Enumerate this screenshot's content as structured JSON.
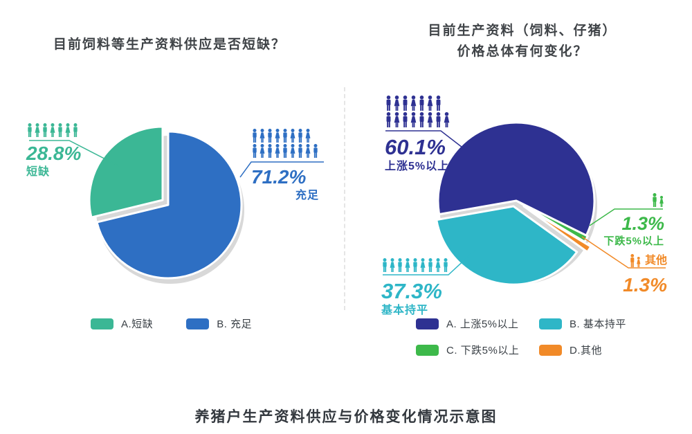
{
  "figure_title": "养猪户生产资料供应与价格变化情况示意图",
  "left_chart": {
    "title": "目前饲料等生产资料供应是否短缺？",
    "callouts": {
      "shortage": {
        "pct": "28.8%",
        "label": "短缺",
        "people_rows": [
          7
        ],
        "color": "#3BB795"
      },
      "sufficient": {
        "pct": "71.2%",
        "label": "充足",
        "people_rows": [
          8,
          9
        ],
        "color": "#2E6FC3"
      }
    },
    "legend": [
      {
        "label": "A.短缺",
        "color": "#3BB795"
      },
      {
        "label": "B. 充足",
        "color": "#2E6FC3"
      }
    ]
  },
  "right_chart": {
    "title_line1": "目前生产资料（饲料、仔猪）",
    "title_line2": "价格总体有何变化？",
    "callouts": {
      "up": {
        "pct": "60.1%",
        "label": "上涨5%以上",
        "people_rows": [
          7,
          8
        ],
        "color": "#2E3192"
      },
      "flat": {
        "pct": "37.3%",
        "label": "基本持平",
        "people_rows": [
          9
        ],
        "color": "#2EB6C7"
      },
      "down": {
        "pct": "1.3%",
        "label": "下跌5%以上",
        "people_rows": [
          2
        ],
        "color": "#3DB94A"
      },
      "other": {
        "pct": "1.3%",
        "label": "其他",
        "people_rows": [
          2
        ],
        "color": "#F18A28"
      }
    },
    "legend": [
      {
        "label": "A. 上涨5%以上",
        "color": "#2E3192"
      },
      {
        "label": "B. 基本持平",
        "color": "#2EB6C7"
      },
      {
        "label": "C. 下跌5%以上",
        "color": "#3DB94A"
      },
      {
        "label": "D.其他",
        "color": "#F18A28"
      }
    ]
  },
  "chart_data": [
    {
      "type": "pie",
      "title": "目前饲料等生产资料供应是否短缺？",
      "unit": "percent",
      "start_angle": 0,
      "legend_position": "bottom",
      "slices": [
        {
          "name": "sufficient",
          "label": "B. 充足",
          "value": 71.2,
          "color": "#2E6FC3",
          "explode": [
            0,
            0
          ]
        },
        {
          "name": "shortage",
          "label": "A.短缺",
          "value": 28.8,
          "color": "#3BB795",
          "explode": [
            -8,
            -7
          ]
        }
      ]
    },
    {
      "type": "pie",
      "title": "目前生产资料（饲料、仔猪）价格总体有何变化？",
      "unit": "percent",
      "start_angle": 260,
      "legend_position": "bottom",
      "slices": [
        {
          "name": "up-over-5pct",
          "label": "A. 上涨5%以上",
          "value": 60.1,
          "color": "#2E3192",
          "explode": [
            0,
            0
          ]
        },
        {
          "name": "down-over-5pct",
          "label": "C. 下跌5%以上",
          "value": 1.3,
          "color": "#3DB94A",
          "explode": [
            2,
            1
          ]
        },
        {
          "name": "other",
          "label": "D.其他",
          "value": 1.3,
          "color": "#F18A28",
          "explode": [
            11,
            8
          ]
        },
        {
          "name": "flat",
          "label": "B. 基本持平",
          "value": 37.3,
          "color": "#2EB6C7",
          "explode": [
            -4,
            8
          ]
        }
      ]
    }
  ]
}
